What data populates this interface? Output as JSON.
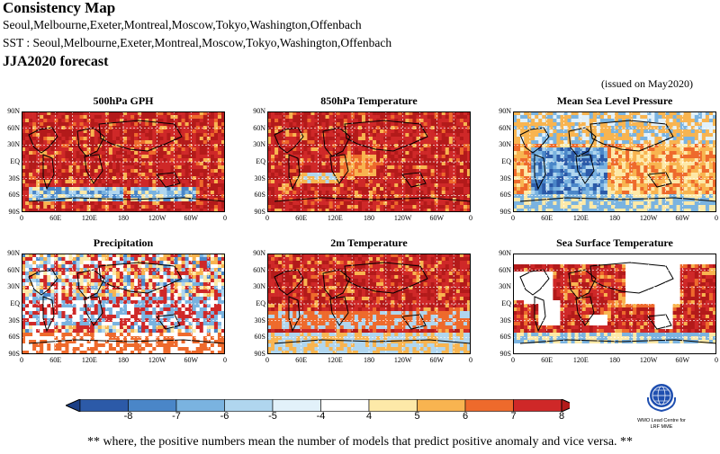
{
  "header": {
    "title": "Consistency Map",
    "models_line": "Seoul,Melbourne,Exeter,Montreal,Moscow,Tokyo,Washington,Offenbach",
    "sst_line": "SST : Seoul,Melbourne,Exeter,Montreal,Moscow,Tokyo,Washington,Offenbach",
    "forecast": "JJA2020 forecast",
    "issued": "(issued on May2020)"
  },
  "panels": [
    {
      "title": "500hPa GPH"
    },
    {
      "title": "850hPa Temperature"
    },
    {
      "title": "Mean Sea Level Pressure"
    },
    {
      "title": "Precipitation"
    },
    {
      "title": "2m Temperature"
    },
    {
      "title": "Sea Surface Temperature"
    }
  ],
  "axes": {
    "lat_labels": [
      "90N",
      "60N",
      "30N",
      "EQ",
      "30S",
      "60S",
      "90S"
    ],
    "lon_labels": [
      "0",
      "60E",
      "120E",
      "180",
      "120W",
      "60W",
      "0"
    ]
  },
  "colorbar": {
    "labels": [
      "-8",
      "-7",
      "-6",
      "-5",
      "-4",
      "4",
      "5",
      "6",
      "7",
      "8"
    ],
    "colors": [
      "#2c5aa8",
      "#4a86c8",
      "#7ab3e0",
      "#b0d6ef",
      "#e2f1fa",
      "#ffffff",
      "#fde9a8",
      "#f8b450",
      "#ee6a2c",
      "#cf2828",
      "#b31a1a"
    ]
  },
  "footnote": "** where, the positive numbers mean the number of models that predict positive anomaly and vice versa. **",
  "logo": {
    "line1": "WMO Lead Centre for",
    "line2": "LRF MME"
  }
}
